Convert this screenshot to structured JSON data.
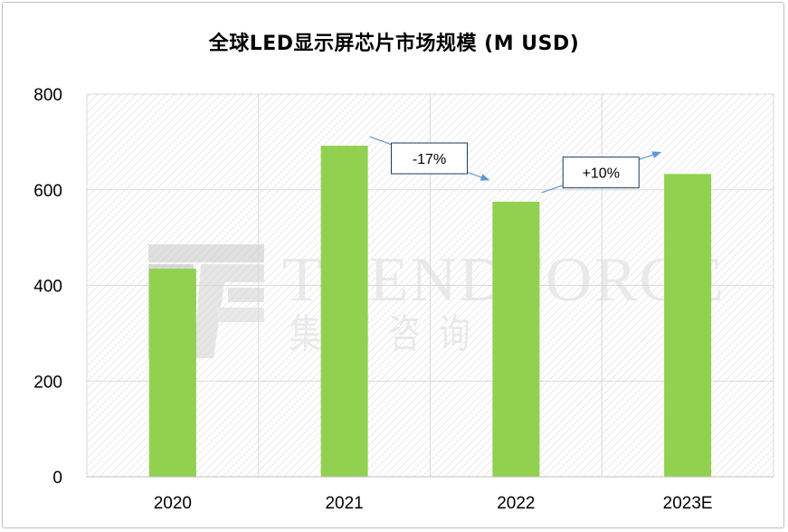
{
  "chart_data": {
    "type": "bar",
    "title": "全球LED显示屏芯片市场规模 (M USD)",
    "categories": [
      "2020",
      "2021",
      "2022",
      "2023E"
    ],
    "values": [
      435,
      692,
      575,
      633
    ],
    "ylim": [
      0,
      800
    ],
    "yticks": [
      0,
      200,
      400,
      600,
      800
    ],
    "xlabel": "",
    "ylabel": "",
    "grid": true,
    "colors": {
      "bar": "#92d050",
      "grid": "#d9d9d9",
      "axis": "#bfbfbf",
      "annotation_arrow": "#5b9bd5"
    },
    "annotations": [
      {
        "text": "-17%",
        "from": "2021",
        "to": "2022"
      },
      {
        "text": "+10%",
        "from": "2022",
        "to": "2023E"
      }
    ]
  },
  "watermark": {
    "brand": "TRENDFORCE",
    "cjk": "集邦咨询"
  }
}
